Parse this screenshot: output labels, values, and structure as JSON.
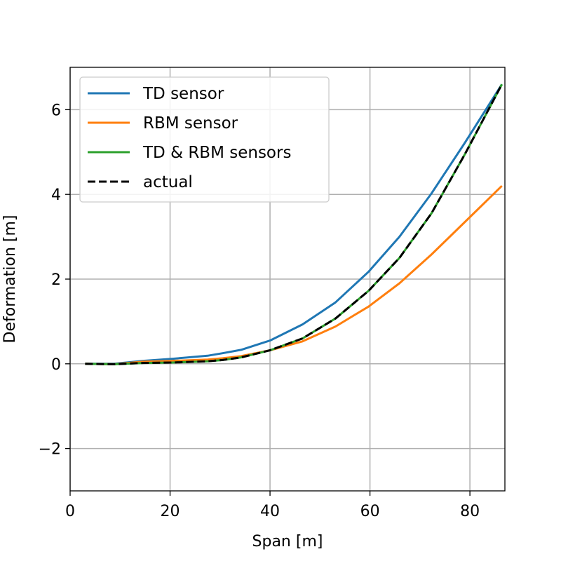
{
  "chart_data": {
    "type": "line",
    "title": "",
    "xlabel": "Span [m]",
    "ylabel": "Deformation [m]",
    "xlim": [
      0,
      87
    ],
    "ylim": [
      -3,
      7
    ],
    "xticks": [
      0,
      20,
      40,
      60,
      80
    ],
    "yticks": [
      -2,
      0,
      2,
      4,
      6
    ],
    "xtick_labels": [
      "0",
      "20",
      "40",
      "60",
      "80"
    ],
    "ytick_labels": [
      "−2",
      "0",
      "2",
      "4",
      "6"
    ],
    "grid": true,
    "legend_position": "top-left",
    "series": [
      {
        "name": "TD sensor",
        "color": "#1f77b4",
        "dash": "solid",
        "x": [
          3,
          8.8,
          14.6,
          20.5,
          27.5,
          30.5,
          34.2,
          40,
          46.5,
          53.1,
          59.7,
          65.9,
          72.3,
          79,
          86.4
        ],
        "y": [
          0,
          0,
          0.07,
          0.12,
          0.19,
          0.25,
          0.33,
          0.55,
          0.93,
          1.45,
          2.17,
          3,
          4.02,
          5.22,
          6.6
        ]
      },
      {
        "name": "RBM sensor",
        "color": "#ff7f0e",
        "dash": "solid",
        "x": [
          3,
          8.8,
          14.6,
          20.5,
          27.5,
          30.5,
          34.2,
          40,
          46.5,
          53.1,
          59.7,
          65.9,
          72.3,
          79,
          86.4
        ],
        "y": [
          0,
          -0.01,
          0.05,
          0.07,
          0.1,
          0.13,
          0.18,
          0.32,
          0.53,
          0.88,
          1.35,
          1.9,
          2.58,
          3.35,
          4.2
        ]
      },
      {
        "name": "TD & RBM sensors",
        "color": "#2ca02c",
        "dash": "solid",
        "x": [
          3,
          8.8,
          14.6,
          20.5,
          27.5,
          30.5,
          34.2,
          40,
          46.5,
          53.1,
          59.7,
          65.9,
          72.3,
          79,
          86.4
        ],
        "y": [
          0,
          -0.01,
          0.02,
          0.03,
          0.06,
          0.09,
          0.15,
          0.32,
          0.6,
          1.07,
          1.72,
          2.5,
          3.55,
          4.95,
          6.6
        ]
      },
      {
        "name": "actual",
        "color": "#000000",
        "dash": "dashed",
        "x": [
          3,
          8.8,
          14.6,
          20.5,
          27.5,
          30.5,
          34.2,
          40,
          46.5,
          53.1,
          59.7,
          65.9,
          72.3,
          79,
          86.4
        ],
        "y": [
          0,
          -0.01,
          0.02,
          0.03,
          0.06,
          0.09,
          0.15,
          0.32,
          0.6,
          1.07,
          1.72,
          2.5,
          3.55,
          4.95,
          6.6
        ]
      }
    ]
  }
}
